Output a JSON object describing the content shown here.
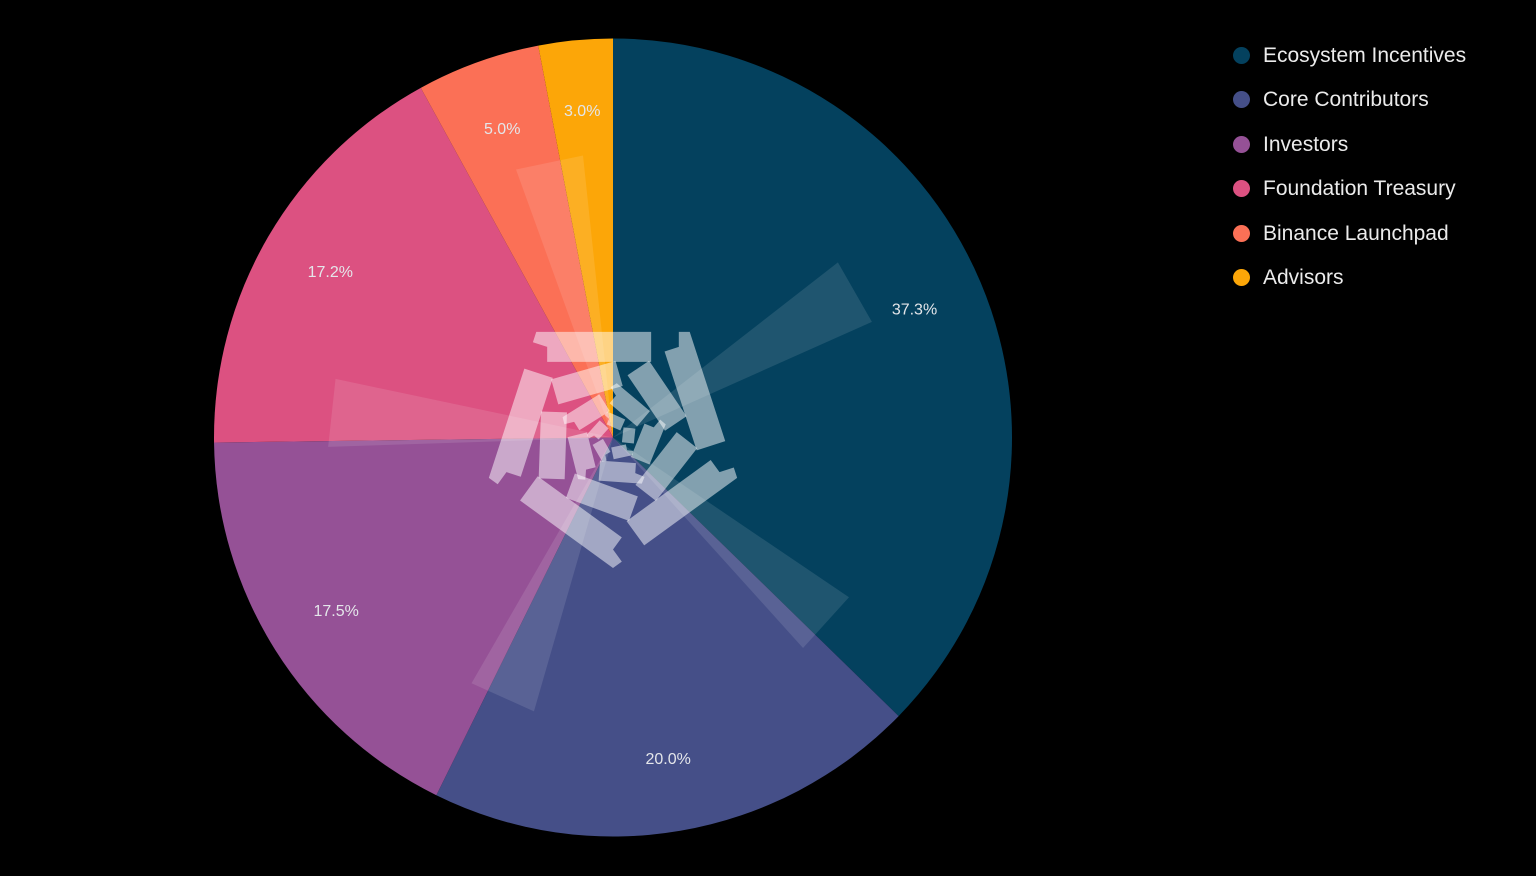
{
  "background": "#000000",
  "chart_data": {
    "type": "pie",
    "title": "",
    "categories": [
      "Ecosystem Incentives",
      "Core Contributors",
      "Investors",
      "Foundation Treasury",
      "Binance Launchpad",
      "Advisors"
    ],
    "values": [
      37.3,
      20.0,
      17.5,
      17.2,
      5.0,
      3.0
    ],
    "value_labels": [
      "37.3%",
      "20.0%",
      "17.5%",
      "17.2%",
      "5.0%",
      "3.0%"
    ],
    "colors": [
      "#04415E",
      "#454F88",
      "#955196",
      "#DC5181",
      "#FB7056",
      "#FCA608"
    ],
    "start_angle_deg": 0,
    "direction": "clockwise",
    "grid": "off",
    "slice_label_color": "#E4E6EA",
    "legend": {
      "position": "top-right",
      "text_color": "#EBEBEB",
      "items": [
        {
          "label": "Ecosystem Incentives"
        },
        {
          "label": "Core Contributors"
        },
        {
          "label": "Investors"
        },
        {
          "label": "Foundation Treasury"
        },
        {
          "label": "Binance Launchpad"
        },
        {
          "label": "Advisors"
        }
      ]
    },
    "watermark": {
      "name": "pentagon-brick-logo",
      "color": "#FFFFFF",
      "brick_opacity": 0.5,
      "beam_opacity": 0.11
    }
  }
}
